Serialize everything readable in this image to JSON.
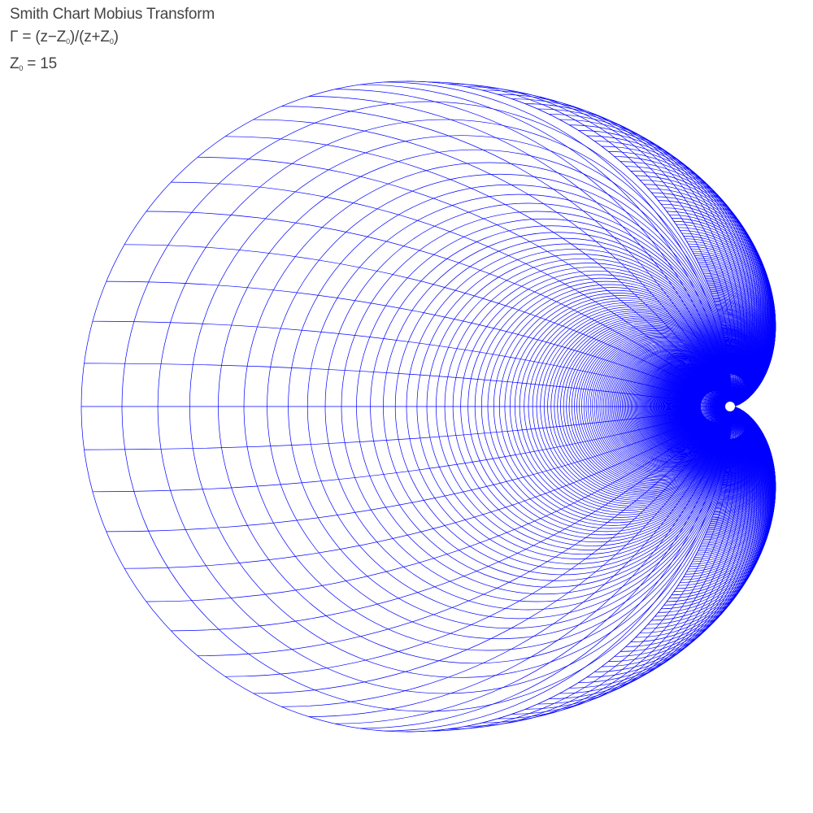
{
  "title": "Smith Chart Mobius Transform",
  "formula": {
    "gamma": "Γ",
    "eq": " = (z−Z",
    "sub1": "0",
    "mid": ")/(z+Z",
    "sub2": "0",
    "end": ")"
  },
  "z0_line": {
    "symbol": "Z",
    "sub": "0",
    "rest": " = 15"
  },
  "chart_data": {
    "type": "mesh",
    "mapping": "Gamma = (z - Z0) / (z + Z0)",
    "z0": 15,
    "resistance_step": 1,
    "reactance_step": 1,
    "resistance_max": 10000,
    "reactance_max": 10000,
    "line_color": "#0000ff",
    "background": "#ffffff"
  }
}
